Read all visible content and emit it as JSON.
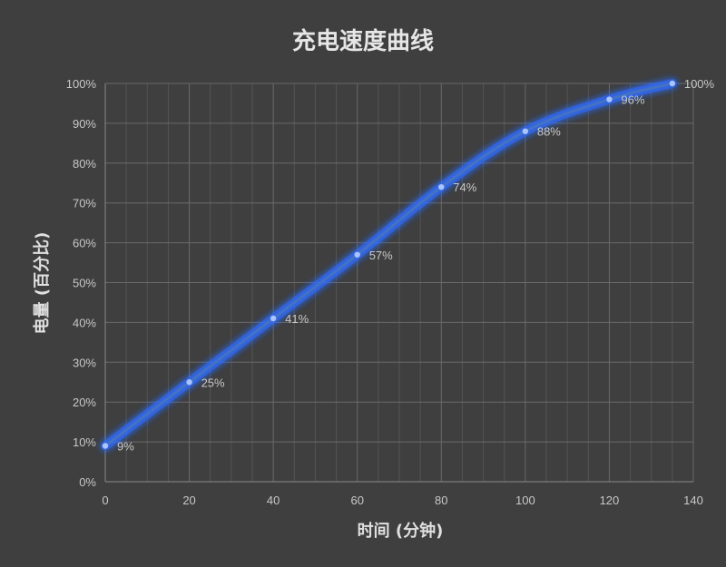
{
  "colors": {
    "background": "#3f3f3f",
    "series": "#4472c4",
    "glow": "#2f6bff",
    "point": "#a9c4ff"
  },
  "chart_data": {
    "type": "line",
    "title": "充电速度曲线",
    "xlabel": "时间 (分钟)",
    "ylabel": "电量 (百分比)",
    "xlim": [
      0,
      140
    ],
    "ylim": [
      0,
      100
    ],
    "x_ticks": [
      0,
      20,
      40,
      60,
      80,
      100,
      120,
      140
    ],
    "y_ticks": [
      "0%",
      "10%",
      "20%",
      "30%",
      "40%",
      "50%",
      "60%",
      "70%",
      "80%",
      "90%",
      "100%"
    ],
    "grid": true,
    "legend": "none",
    "x": [
      0,
      20,
      40,
      60,
      80,
      100,
      120,
      135
    ],
    "series": [
      {
        "values": [
          9,
          25,
          41,
          57,
          74,
          88,
          96,
          100
        ],
        "labels": [
          "9%",
          "25%",
          "41%",
          "57%",
          "74%",
          "88%",
          "96%",
          "100%"
        ]
      }
    ]
  }
}
